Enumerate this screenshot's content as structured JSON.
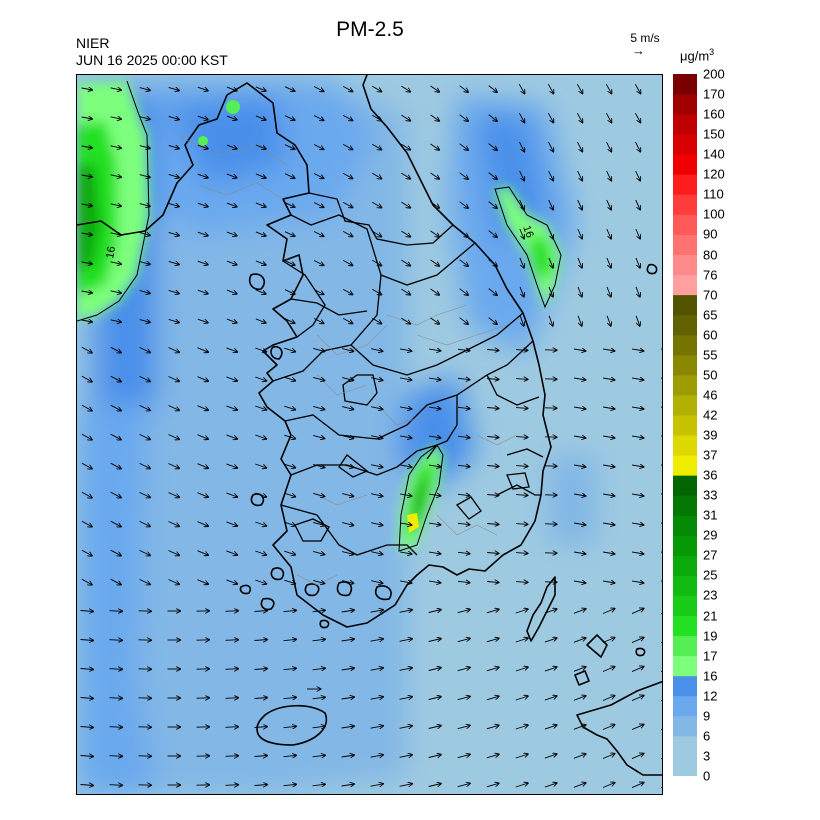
{
  "title": "PM-2.5",
  "agency": "NIER",
  "timestamp": "JUN 16 2025 00:00 KST",
  "wind_reference": {
    "label": "5 m/s",
    "arrow": "→"
  },
  "unit": {
    "base": "μg/m",
    "sup": "3"
  },
  "contour_label": "16",
  "colorbar": {
    "labels": [
      "0",
      "3",
      "6",
      "9",
      "12",
      "16",
      "17",
      "19",
      "21",
      "23",
      "25",
      "27",
      "29",
      "31",
      "33",
      "36",
      "37",
      "39",
      "42",
      "46",
      "50",
      "55",
      "60",
      "65",
      "70",
      "76",
      "80",
      "90",
      "100",
      "110",
      "120",
      "140",
      "150",
      "160",
      "170",
      "200"
    ],
    "colors": [
      "#9ecae1",
      "#9ecae1",
      "#82b7e6",
      "#6aa9ee",
      "#4a8fea",
      "#7dff7d",
      "#55ef55",
      "#22e022",
      "#18cc18",
      "#12bb12",
      "#0aaa0a",
      "#069906",
      "#048a04",
      "#037803",
      "#026602",
      "#f0ec00",
      "#dcd800",
      "#c7c300",
      "#b2b000",
      "#9d9c00",
      "#898800",
      "#757400",
      "#626200",
      "#535300",
      "#ff9f9f",
      "#ff8a8a",
      "#ff7272",
      "#ff5a5a",
      "#ff3d3d",
      "#ff1e1e",
      "#f00000",
      "#d80000",
      "#c00000",
      "#a00000",
      "#7a0000"
    ]
  },
  "colors": {
    "ocean_light": "#9ecae1",
    "ocean_mid": "#82b7e6",
    "ocean_dark": "#4a8fea",
    "green_light": "#7dff7d",
    "green_mid": "#22e022",
    "green_dark": "#069906",
    "yellow": "#f0ec00",
    "coast": "#000000",
    "province": "#8a8a8a"
  }
}
